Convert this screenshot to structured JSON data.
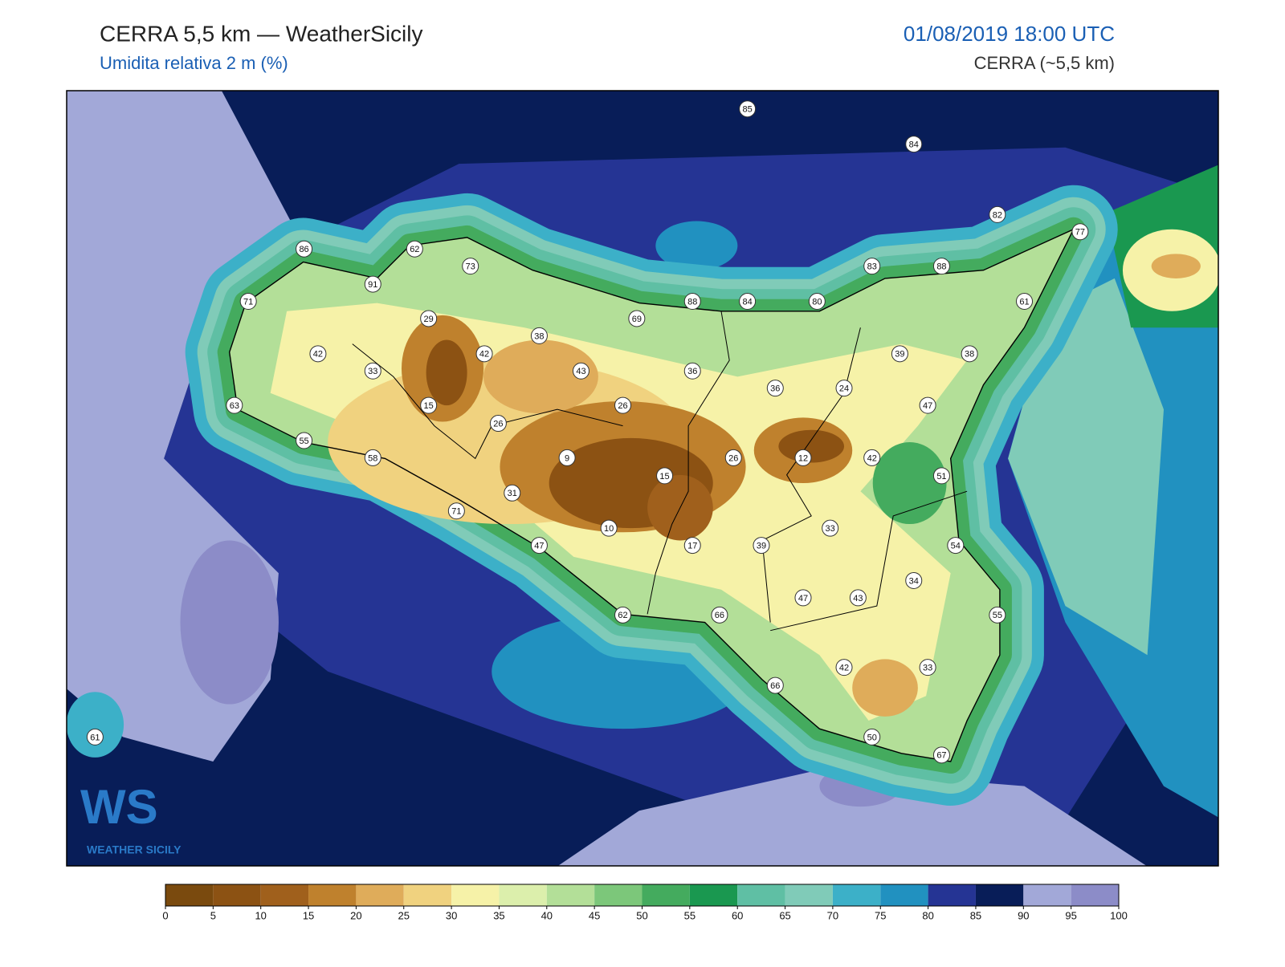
{
  "header": {
    "title": "CERRA 5,5 km — WeatherSicily",
    "subtitle": "Umidita relativa 2 m (%)",
    "date": "01/08/2019 18:00 UTC",
    "model": "CERRA (~5,5 km)"
  },
  "logo": {
    "mark": "WS",
    "text": "WEATHER SICILY"
  },
  "stations": [
    85,
    84,
    82,
    77,
    86,
    62,
    73,
    91,
    83,
    88,
    71,
    88,
    84,
    80,
    61,
    69,
    29,
    38,
    42,
    42,
    39,
    38,
    33,
    43,
    36,
    36,
    24,
    63,
    15,
    26,
    47,
    26,
    55,
    58,
    9,
    26,
    12,
    42,
    15,
    51,
    31,
    71,
    33,
    10,
    47,
    17,
    39,
    54,
    34,
    47,
    43,
    62,
    66,
    55,
    42,
    33,
    66,
    50,
    61,
    67
  ],
  "colorbar": {
    "ticks": [
      0,
      5,
      10,
      15,
      20,
      25,
      30,
      35,
      40,
      45,
      50,
      55,
      60,
      65,
      70,
      75,
      80,
      85,
      90,
      95,
      100
    ],
    "colors": [
      "#7a4a0e",
      "#8c5213",
      "#a0601c",
      "#bf812d",
      "#dfac5a",
      "#f0d27f",
      "#f6f2a8",
      "#dcefac",
      "#b3df98",
      "#7cc77a",
      "#44ab5e",
      "#1a9850",
      "#5fbfa4",
      "#80cbb8",
      "#3cb0c8",
      "#2191c0",
      "#253494",
      "#081d58",
      "#a2a8d8",
      "#8c8cc8"
    ]
  }
}
